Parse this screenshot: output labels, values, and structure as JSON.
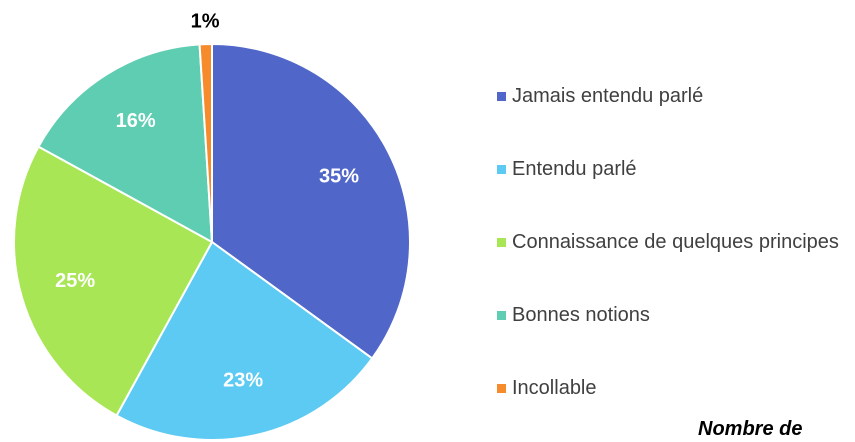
{
  "chart_data": {
    "type": "pie",
    "categories": [
      "Jamais entendu parlé",
      "Entendu parlé",
      "Connaissance de quelques principes",
      "Bonnes notions",
      "Incollable"
    ],
    "values": [
      35,
      23,
      25,
      16,
      1
    ],
    "value_labels": [
      "35%",
      "23%",
      "25%",
      "16%",
      "1%"
    ],
    "colors": [
      "#5066c8",
      "#5ccaf2",
      "#a8e655",
      "#5ecdb1",
      "#f68b2c"
    ],
    "annotation": "Nombre de"
  }
}
